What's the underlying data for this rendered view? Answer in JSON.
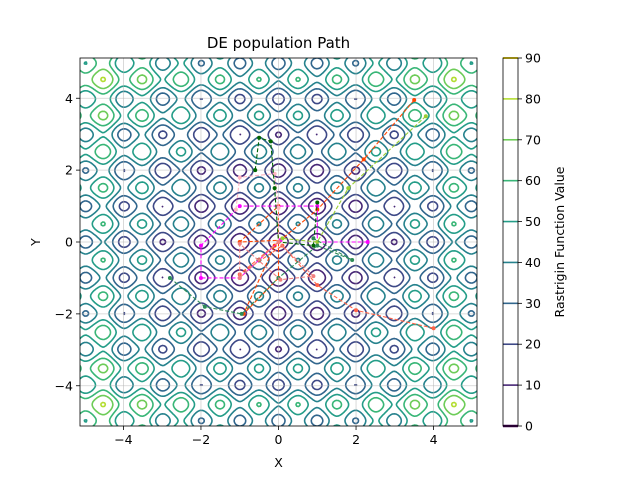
{
  "chart_data": {
    "type": "contour",
    "title": "DE population Path",
    "xlabel": "X",
    "ylabel": "Y",
    "xlim": [
      -5.12,
      5.12
    ],
    "ylim": [
      -5.12,
      5.12
    ],
    "xticks": [
      -4,
      -2,
      0,
      2,
      4
    ],
    "yticks": [
      -4,
      -2,
      0,
      2,
      4
    ],
    "grid": true,
    "function": "rastrigin",
    "contour_levels": [
      10,
      20,
      30,
      40,
      50,
      60,
      70,
      80
    ],
    "colorbar": {
      "label": "Rastrigin Function Value",
      "range": [
        0,
        90
      ],
      "ticks": [
        0,
        10,
        20,
        30,
        40,
        50,
        60,
        70,
        80,
        90
      ],
      "colors": [
        "#440154",
        "#472c7a",
        "#3b518b",
        "#2c718e",
        "#21908d",
        "#27ad81",
        "#5cc863",
        "#aadc32",
        "#fde725"
      ]
    },
    "paths": [
      {
        "color": "#ff4500",
        "points": [
          [
            3.5,
            3.95
          ],
          [
            2.2,
            2.3
          ],
          [
            1.0,
            0.9
          ],
          [
            0.05,
            0.05
          ],
          [
            -1.0,
            0.0
          ],
          [
            0.0,
            1.0
          ],
          [
            0.0,
            -1.0
          ],
          [
            -0.9,
            -2.0
          ],
          [
            -0.1,
            -0.1
          ],
          [
            0.0,
            0.0
          ]
        ]
      },
      {
        "color": "#ff00ff",
        "points": [
          [
            2.3,
            0.0
          ],
          [
            1.0,
            0.0
          ],
          [
            1.0,
            1.0
          ],
          [
            -1.0,
            1.0
          ],
          [
            -2.0,
            -0.1
          ],
          [
            -2.0,
            -1.0
          ],
          [
            -1.0,
            -1.0
          ],
          [
            0.05,
            0.05
          ]
        ]
      },
      {
        "color": "#ff6347",
        "points": [
          [
            4.0,
            -2.4
          ],
          [
            2.0,
            -1.9
          ],
          [
            1.0,
            -1.2
          ],
          [
            0.1,
            -0.1
          ],
          [
            -1.0,
            -0.9
          ],
          [
            0.0,
            0.0
          ]
        ]
      },
      {
        "color": "#ffb6c1",
        "points": [
          [
            -1.1,
            0.9
          ],
          [
            -1.0,
            1.8
          ],
          [
            -0.1,
            1.9
          ],
          [
            0.0,
            0.95
          ],
          [
            0.0,
            0.0
          ]
        ]
      },
      {
        "color": "#006400",
        "points": [
          [
            -0.6,
            2.0
          ],
          [
            -0.5,
            2.9
          ],
          [
            -0.2,
            2.8
          ],
          [
            -0.1,
            1.5
          ],
          [
            0.0,
            0.0
          ],
          [
            0.9,
            -0.1
          ],
          [
            1.0,
            1.1
          ]
        ]
      },
      {
        "color": "#9acd32",
        "points": [
          [
            3.8,
            3.5
          ],
          [
            1.8,
            1.5
          ],
          [
            1.0,
            0.0
          ],
          [
            0.1,
            0.1
          ]
        ]
      },
      {
        "color": "#2e8b57",
        "points": [
          [
            -2.8,
            -1.0
          ],
          [
            -1.9,
            -1.8
          ],
          [
            -0.95,
            -2.0
          ],
          [
            0.0,
            -1.0
          ],
          [
            1.0,
            -0.1
          ],
          [
            1.9,
            -0.5
          ],
          [
            0.9,
            0.1
          ]
        ]
      },
      {
        "color": "#f08080",
        "points": [
          [
            0.0,
            0.0
          ],
          [
            -1.0,
            -1.0
          ],
          [
            -1.0,
            -0.05
          ],
          [
            0.05,
            -1.05
          ],
          [
            0.9,
            -0.95
          ],
          [
            0.0,
            0.0
          ]
        ]
      }
    ]
  }
}
